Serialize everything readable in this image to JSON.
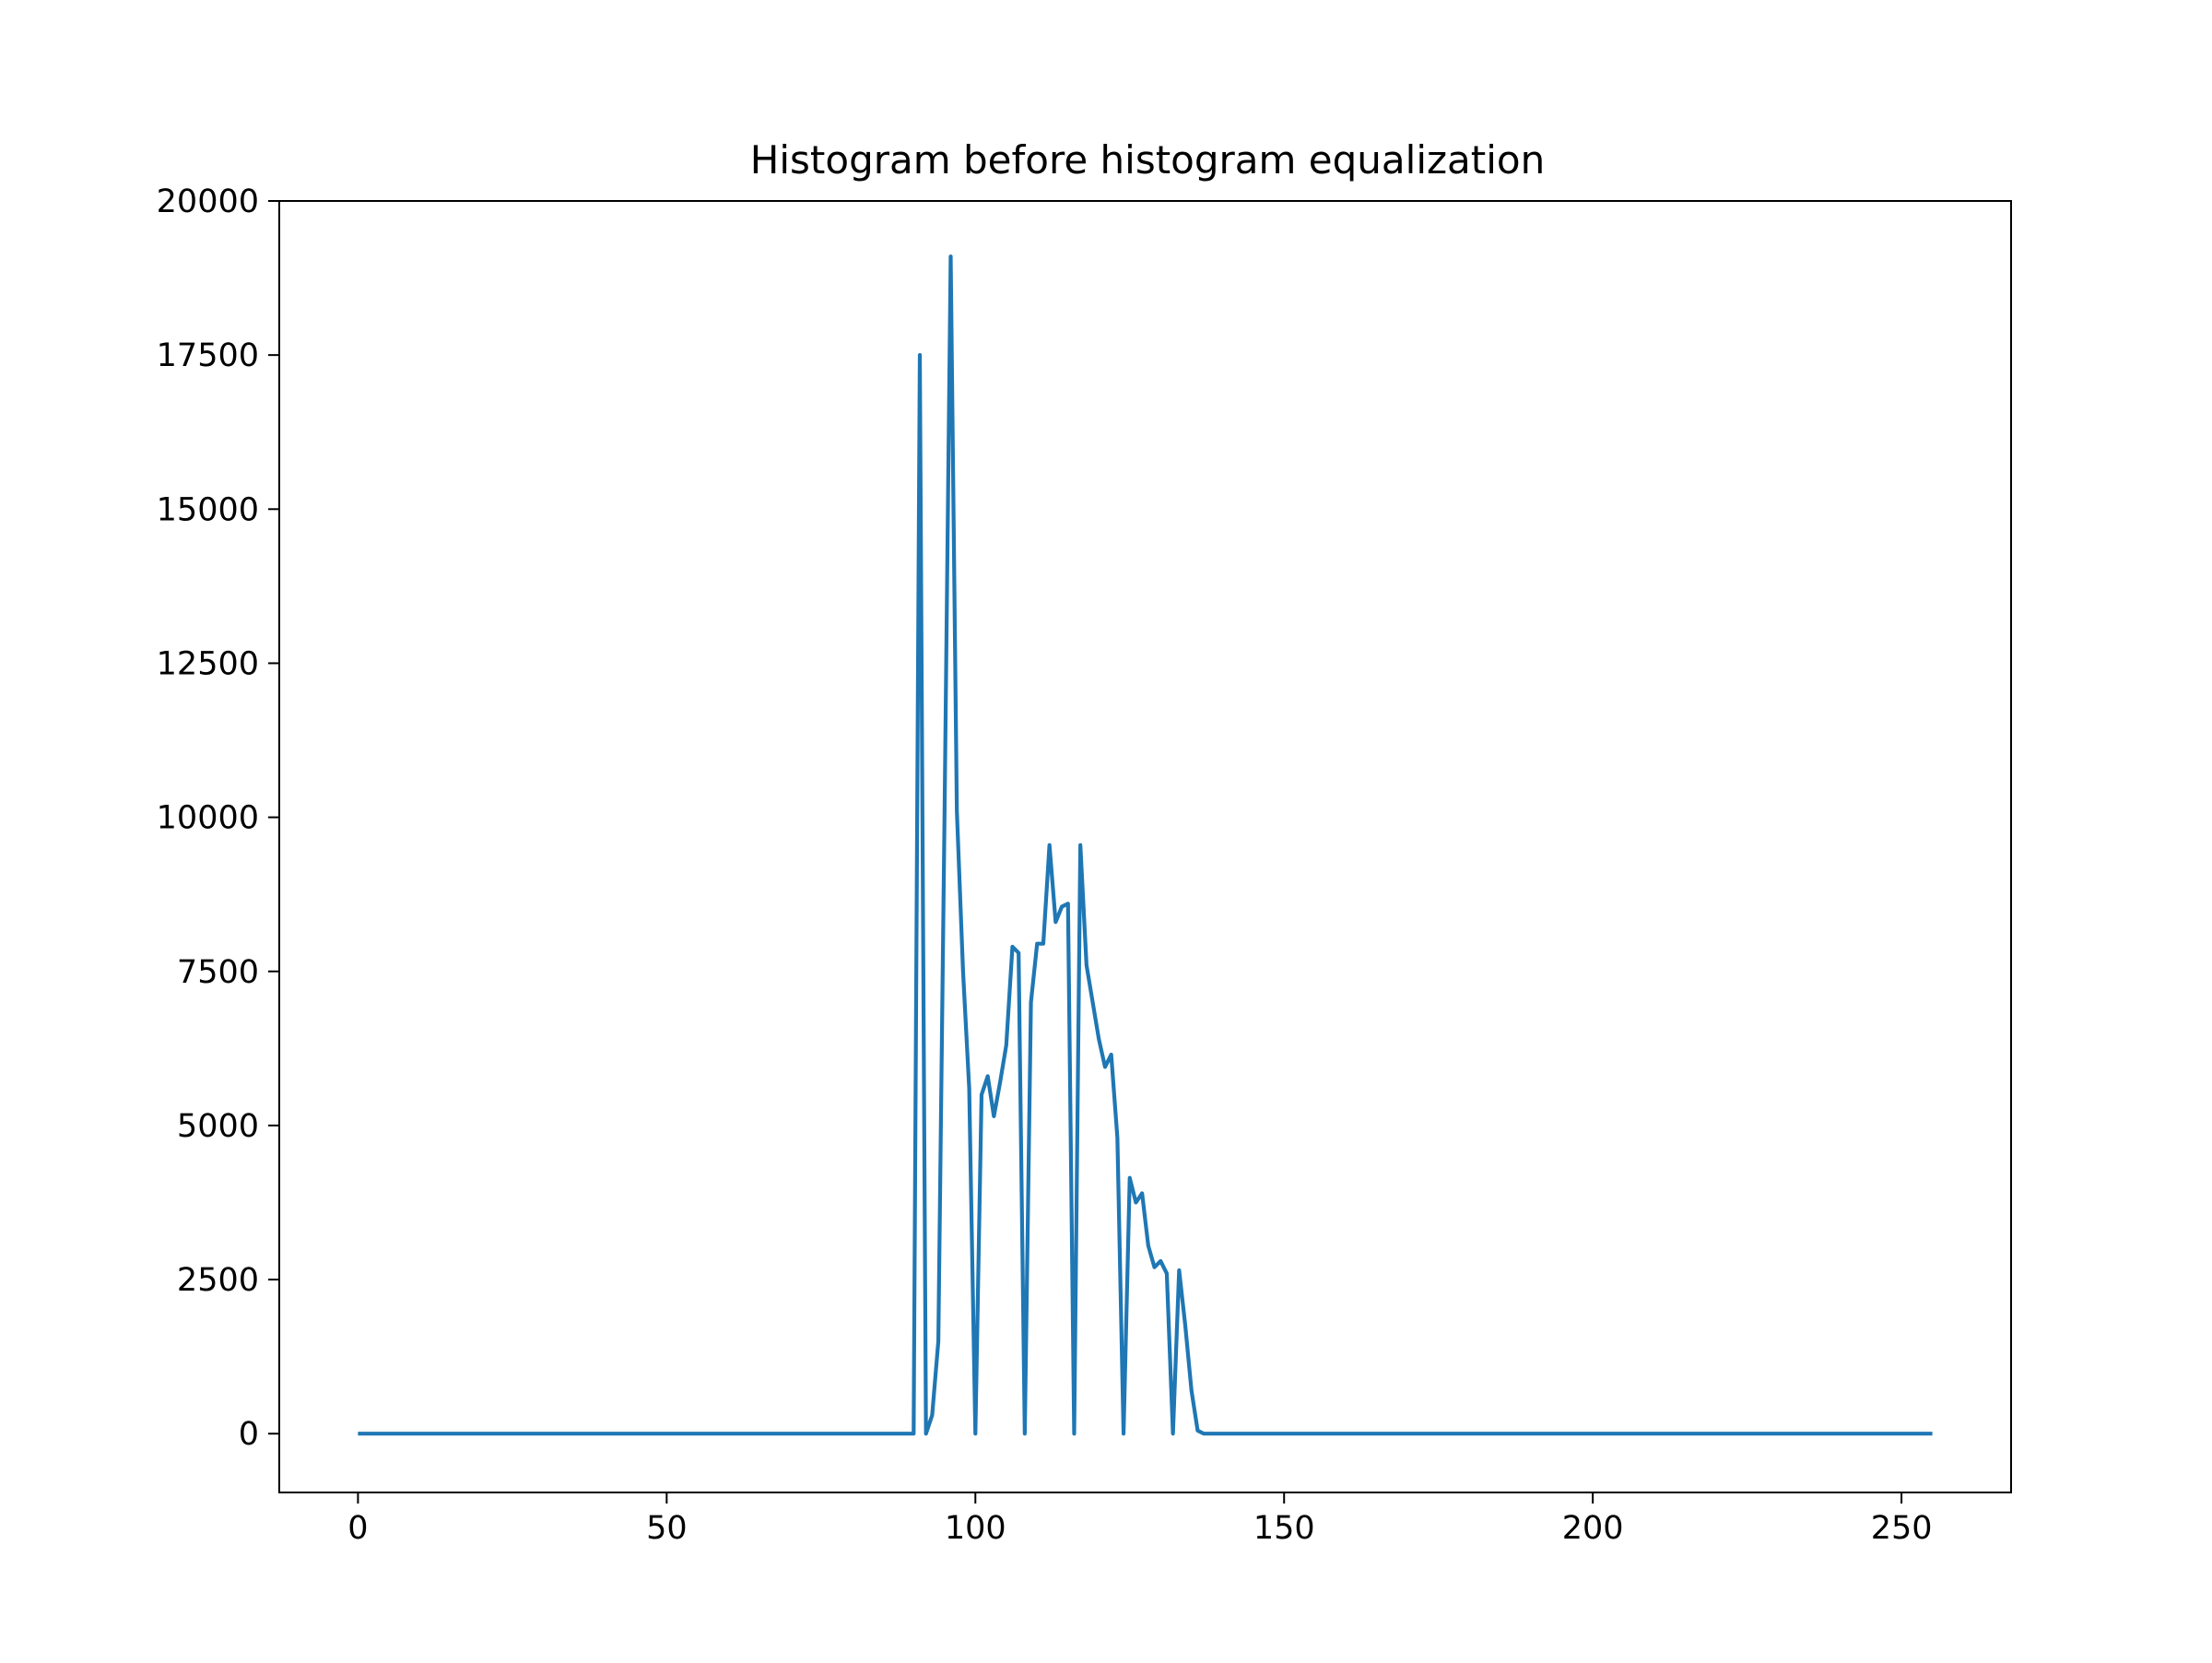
{
  "chart_data": {
    "type": "line",
    "title": "Histogram before histogram equalization",
    "xlabel": "",
    "ylabel": "",
    "xlim": [
      -12.75,
      267.75
    ],
    "ylim": [
      -954,
      20000
    ],
    "xticks": [
      0,
      50,
      100,
      150,
      200,
      250
    ],
    "yticks": [
      0,
      2500,
      5000,
      7500,
      10000,
      12500,
      15000,
      17500,
      20000
    ],
    "grid": false,
    "legend": "none",
    "colors": {
      "line": "#1f77b4",
      "axes": "#000000",
      "background": "#ffffff"
    },
    "series": [
      {
        "x": [
          0,
          90,
          91,
          92,
          93,
          94,
          95,
          96,
          97,
          98,
          99,
          100,
          101,
          102,
          103,
          104,
          105,
          106,
          107,
          108,
          109,
          110,
          111,
          112,
          113,
          114,
          115,
          116,
          117,
          118,
          119,
          120,
          121,
          122,
          123,
          124,
          125,
          126,
          127,
          128,
          129,
          130,
          131,
          132,
          133,
          134,
          135,
          136,
          137,
          255
        ],
        "y": [
          0,
          0,
          17500,
          0,
          300,
          1500,
          10000,
          19100,
          10100,
          7500,
          5600,
          0,
          5500,
          5800,
          5150,
          5700,
          6300,
          7900,
          7800,
          0,
          7000,
          7950,
          7950,
          9550,
          8300,
          8550,
          8600,
          0,
          9550,
          7600,
          7000,
          6400,
          5950,
          6150,
          4800,
          0,
          4150,
          3750,
          3900,
          3050,
          2700,
          2800,
          2600,
          0,
          2650,
          1750,
          700,
          50,
          0,
          0
        ]
      }
    ]
  }
}
